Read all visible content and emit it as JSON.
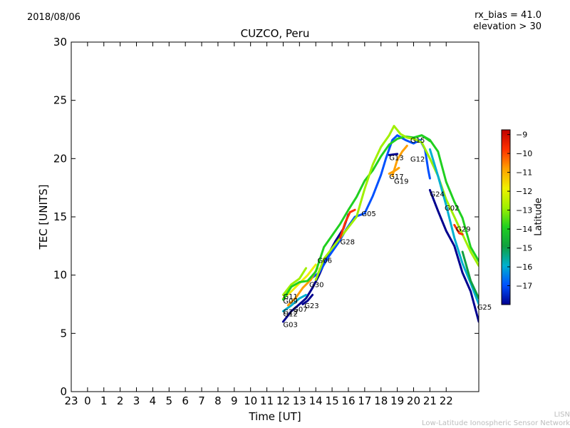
{
  "header": {
    "date": "2018/08/06",
    "bias_note": "rx_bias = 41.0",
    "elevation_note": "elevation > 30"
  },
  "footer": {
    "credit_line1": "LISN",
    "credit_line2": "Low-Latitude Ionospheric Sensor Network"
  },
  "colors": {
    "scale": [
      "#00008f",
      "#0050ff",
      "#00b0d0",
      "#10a040",
      "#20d020",
      "#a0f000",
      "#f0f000",
      "#ffa000",
      "#ff3000",
      "#c00000"
    ]
  },
  "chart_data": {
    "type": "scatter",
    "title": "CUZCO, Peru",
    "xlabel": "Time [UT]",
    "ylabel": "TEC [UNITS]",
    "xlim": [
      -1,
      24
    ],
    "ylim": [
      0,
      30
    ],
    "xtick_values": [
      -1,
      0,
      1,
      2,
      3,
      4,
      5,
      6,
      7,
      8,
      9,
      10,
      11,
      12,
      13,
      14,
      15,
      16,
      17,
      18,
      19,
      20,
      21,
      22
    ],
    "xtick_labels": [
      "23",
      "0",
      "1",
      "2",
      "3",
      "4",
      "5",
      "6",
      "7",
      "8",
      "9",
      "10",
      "11",
      "12",
      "13",
      "14",
      "15",
      "16",
      "17",
      "18",
      "19",
      "20",
      "21",
      "22"
    ],
    "yticks": [
      0,
      5,
      10,
      15,
      20,
      25,
      30
    ],
    "colorbar": {
      "label": "Latitude",
      "range": [
        -18,
        -8.75
      ],
      "ticks": [
        -9,
        -10,
        -11,
        -12,
        -13,
        -14,
        -15,
        -16,
        -17
      ]
    },
    "series": [
      {
        "name": "G03",
        "lat": -17.8,
        "points": [
          [
            12.0,
            6.0
          ],
          [
            12.5,
            6.9
          ],
          [
            13.0,
            7.5
          ],
          [
            13.4,
            8.0
          ],
          [
            13.8,
            8.9
          ],
          [
            14.2,
            10.0
          ],
          [
            14.7,
            11.6
          ],
          [
            15.2,
            12.9
          ],
          [
            15.7,
            14.0
          ],
          [
            16.0,
            15.2
          ]
        ]
      },
      {
        "name": "G30",
        "lat": -16.5,
        "points": [
          [
            13.6,
            9.6
          ],
          [
            14.2,
            10.2
          ],
          [
            14.8,
            11.6
          ],
          [
            15.4,
            12.8
          ],
          [
            15.9,
            14.0
          ],
          [
            16.4,
            15.0
          ],
          [
            17.0,
            15.3
          ],
          [
            17.5,
            16.8
          ],
          [
            18.0,
            18.6
          ],
          [
            18.3,
            20.0
          ],
          [
            18.7,
            21.6
          ],
          [
            19.0,
            22.0
          ],
          [
            19.5,
            21.6
          ],
          [
            20.0,
            21.3
          ],
          [
            20.4,
            21.6
          ],
          [
            20.7,
            20.8
          ],
          [
            20.9,
            19.0
          ],
          [
            21.0,
            18.3
          ]
        ]
      },
      {
        "name": "G12",
        "lat": -15.5,
        "points": [
          [
            12.0,
            6.9
          ],
          [
            12.5,
            7.4
          ],
          [
            13.0,
            8.0
          ],
          [
            13.4,
            8.3
          ]
        ]
      },
      {
        "name": "G23",
        "lat": -17.8,
        "points": [
          [
            13.2,
            7.5
          ],
          [
            13.5,
            7.8
          ],
          [
            13.8,
            8.3
          ]
        ]
      },
      {
        "name": "G07",
        "lat": -10.5,
        "points": [
          [
            12.3,
            7.4
          ],
          [
            12.8,
            8.1
          ],
          [
            13.2,
            8.9
          ],
          [
            13.7,
            9.6
          ],
          [
            14.1,
            10.6
          ]
        ]
      },
      {
        "name": "G09",
        "lat": -12.0,
        "points": [
          [
            12.0,
            8.0
          ],
          [
            12.5,
            8.6
          ],
          [
            13.0,
            9.3
          ],
          [
            13.5,
            10.0
          ],
          [
            14.0,
            10.9
          ]
        ]
      },
      {
        "name": "G11",
        "lat": -13.0,
        "points": [
          [
            12.0,
            8.3
          ],
          [
            12.5,
            9.2
          ],
          [
            13.0,
            9.7
          ],
          [
            13.4,
            10.6
          ]
        ]
      },
      {
        "name": "G06",
        "lat": -14.0,
        "points": [
          [
            12.0,
            7.9
          ],
          [
            12.5,
            9.0
          ],
          [
            13.0,
            9.4
          ],
          [
            13.5,
            9.5
          ],
          [
            14.0,
            10.3
          ],
          [
            14.5,
            12.4
          ],
          [
            15.0,
            13.4
          ],
          [
            15.5,
            14.4
          ],
          [
            16.0,
            15.6
          ],
          [
            16.5,
            16.7
          ],
          [
            17.0,
            18.1
          ],
          [
            17.5,
            19.0
          ],
          [
            18.0,
            20.2
          ],
          [
            18.5,
            21.2
          ],
          [
            19.0,
            21.7
          ],
          [
            19.5,
            21.9
          ],
          [
            20.0,
            21.8
          ],
          [
            20.5,
            22.0
          ],
          [
            21.0,
            21.6
          ],
          [
            21.5,
            20.6
          ],
          [
            22.0,
            18.0
          ],
          [
            22.5,
            16.3
          ],
          [
            23.0,
            14.9
          ],
          [
            23.5,
            12.4
          ],
          [
            24.0,
            11.2
          ]
        ]
      },
      {
        "name": "G28",
        "lat": -12.8,
        "points": [
          [
            14.0,
            9.6
          ],
          [
            14.5,
            11.4
          ],
          [
            15.0,
            12.3
          ],
          [
            15.5,
            13.2
          ],
          [
            16.0,
            14.1
          ],
          [
            16.5,
            15.0
          ],
          [
            17.0,
            17.4
          ],
          [
            17.5,
            19.5
          ],
          [
            18.0,
            21.0
          ],
          [
            18.5,
            22.0
          ],
          [
            18.8,
            22.8
          ],
          [
            19.2,
            22.1
          ],
          [
            19.6,
            21.8
          ],
          [
            20.0,
            21.7
          ],
          [
            20.5,
            21.4
          ],
          [
            21.0,
            20.0
          ],
          [
            21.5,
            18.5
          ],
          [
            22.0,
            16.5
          ],
          [
            22.5,
            15.0
          ],
          [
            23.0,
            13.5
          ],
          [
            23.5,
            12.0
          ],
          [
            24.0,
            10.8
          ]
        ]
      },
      {
        "name": "G05",
        "lat": -9.5,
        "points": [
          [
            15.5,
            13.2
          ],
          [
            15.8,
            14.5
          ],
          [
            16.1,
            15.4
          ],
          [
            16.4,
            15.6
          ]
        ]
      },
      {
        "name": "G13",
        "lat": -17.5,
        "points": [
          [
            18.5,
            20.3
          ],
          [
            19.0,
            20.4
          ]
        ]
      },
      {
        "name": "G17",
        "lat": -10.8,
        "points": [
          [
            18.5,
            18.7
          ],
          [
            18.9,
            19.0
          ],
          [
            19.1,
            19.2
          ]
        ]
      },
      {
        "name": "G19",
        "lat": -11.0,
        "points": [
          [
            18.7,
            18.5
          ],
          [
            19.0,
            19.9
          ],
          [
            19.3,
            20.6
          ],
          [
            19.6,
            21.1
          ]
        ]
      },
      {
        "name": "G15",
        "lat": -13.5,
        "points": [
          [
            20.0,
            21.8
          ],
          [
            20.5,
            22.0
          ],
          [
            21.0,
            21.5
          ]
        ]
      },
      {
        "name": "G24",
        "lat": -17.8,
        "points": [
          [
            21.0,
            17.3
          ],
          [
            21.5,
            15.5
          ],
          [
            22.0,
            13.8
          ],
          [
            22.5,
            12.5
          ],
          [
            23.0,
            10.2
          ],
          [
            23.5,
            8.6
          ],
          [
            24.0,
            6.0
          ]
        ]
      },
      {
        "name": "G02",
        "lat": -16.0,
        "points": [
          [
            21.0,
            20.8
          ],
          [
            21.5,
            18.5
          ],
          [
            22.0,
            16.0
          ],
          [
            22.5,
            13.2
          ],
          [
            23.0,
            11.0
          ],
          [
            23.5,
            9.3
          ],
          [
            24.0,
            7.5
          ]
        ]
      },
      {
        "name": "G29",
        "lat": -9.8,
        "points": [
          [
            22.5,
            14.3
          ],
          [
            22.8,
            13.6
          ],
          [
            23.0,
            13.5
          ]
        ]
      },
      {
        "name": "G25",
        "lat": -14.5,
        "points": [
          [
            23.0,
            12.0
          ],
          [
            23.5,
            9.5
          ],
          [
            24.0,
            8.0
          ]
        ]
      }
    ],
    "labels": [
      {
        "text": "G03",
        "x": 12.0,
        "y": 5.8
      },
      {
        "text": "G12",
        "x": 12.0,
        "y": 6.7
      },
      {
        "text": "G23",
        "x": 12.0,
        "y": 6.9
      },
      {
        "text": "G07",
        "x": 12.6,
        "y": 7.1
      },
      {
        "text": "G23",
        "x": 13.3,
        "y": 7.4
      },
      {
        "text": "G09",
        "x": 12.0,
        "y": 7.8
      },
      {
        "text": "G11",
        "x": 12.0,
        "y": 8.2
      },
      {
        "text": "G30",
        "x": 13.6,
        "y": 9.2
      },
      {
        "text": "G06",
        "x": 14.1,
        "y": 11.3
      },
      {
        "text": "G28",
        "x": 15.5,
        "y": 12.9
      },
      {
        "text": "G05",
        "x": 16.8,
        "y": 15.3
      },
      {
        "text": "G13",
        "x": 18.5,
        "y": 20.1
      },
      {
        "text": "G17",
        "x": 18.5,
        "y": 18.5
      },
      {
        "text": "G19",
        "x": 18.8,
        "y": 18.1
      },
      {
        "text": "G15",
        "x": 19.8,
        "y": 21.6
      },
      {
        "text": "G12",
        "x": 19.8,
        "y": 20.0
      },
      {
        "text": "G24",
        "x": 21.0,
        "y": 17.0
      },
      {
        "text": "G02",
        "x": 21.9,
        "y": 15.8
      },
      {
        "text": "G29",
        "x": 22.6,
        "y": 14.0
      },
      {
        "text": "G25",
        "x": 23.9,
        "y": 7.3
      }
    ]
  }
}
